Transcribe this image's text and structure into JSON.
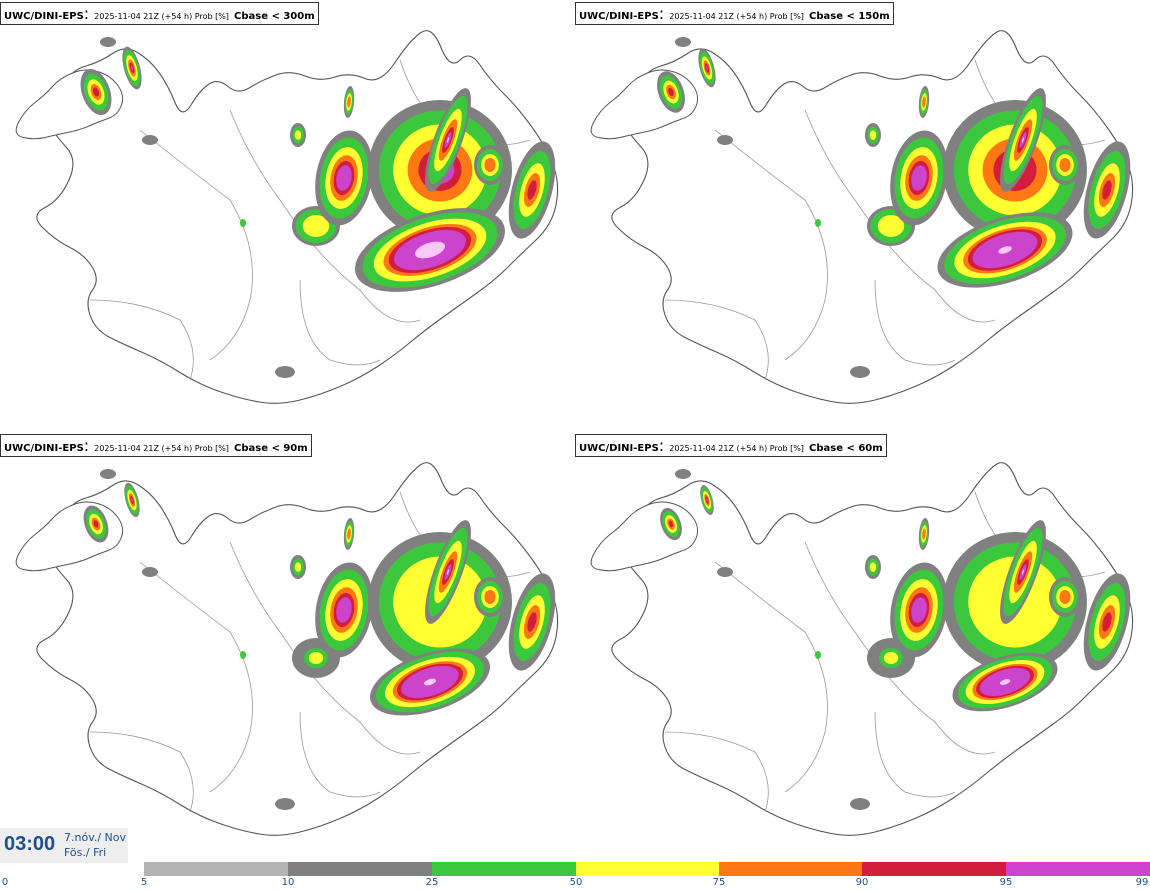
{
  "panels": [
    {
      "model": "UWC/DINI-EPS",
      "run_info": "2025-11-04 21Z (+54 h) Prob [%]",
      "parameter": "Cbase < 300m"
    },
    {
      "model": "UWC/DINI-EPS",
      "run_info": "2025-11-04 21Z (+54 h) Prob [%]",
      "parameter": "Cbase < 150m"
    },
    {
      "model": "UWC/DINI-EPS",
      "run_info": "2025-11-04 21Z (+54 h) Prob [%]",
      "parameter": "Cbase < 90m"
    },
    {
      "model": "UWC/DINI-EPS",
      "run_info": "2025-11-04 21Z (+54 h) Prob [%]",
      "parameter": "Cbase < 60m"
    }
  ],
  "valid_time": {
    "time": "03:00",
    "date_line1": "7.nóv./ Nov",
    "date_line2": "Fös./ Fri"
  },
  "legend": {
    "ticks": [
      "0",
      "5",
      "10",
      "25",
      "50",
      "75",
      "90",
      "95",
      "99"
    ],
    "colors": [
      "#b4b4b4",
      "#808080",
      "#3cc83c",
      "#ffff32",
      "#ff7814",
      "#d21e3c",
      "#cc44cc",
      "#f8c8f8"
    ]
  }
}
